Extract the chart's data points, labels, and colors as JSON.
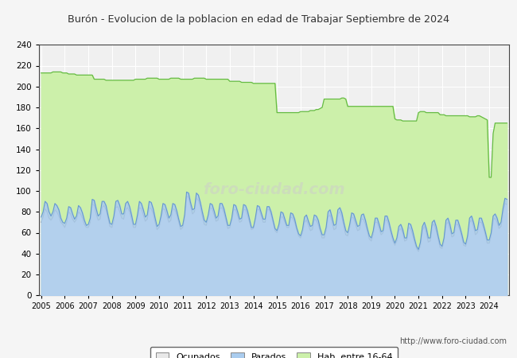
{
  "title": "Burón - Evolucion de la poblacion en edad de Trabajar Septiembre de 2024",
  "title_color": "#333333",
  "ylim": [
    0,
    240
  ],
  "yticks": [
    0,
    20,
    40,
    60,
    80,
    100,
    120,
    140,
    160,
    180,
    200,
    220,
    240
  ],
  "xlim_start": 2004.9,
  "xlim_end": 2024.85,
  "xtick_labels": [
    "2005",
    "2006",
    "2007",
    "2008",
    "2009",
    "2010",
    "2011",
    "2012",
    "2013",
    "2014",
    "2015",
    "2016",
    "2017",
    "2018",
    "2019",
    "2020",
    "2021",
    "2022",
    "2023",
    "2024"
  ],
  "url": "http://www.foro-ciudad.com",
  "legend_labels": [
    "Ocupados",
    "Parados",
    "Hab. entre 16-64"
  ],
  "hab_color": "#ccf0aa",
  "hab_edge": "#66bb44",
  "ocupados_fill": "#e8e8e8",
  "ocupados_edge": "#888888",
  "parados_fill": "#aaccee",
  "parados_edge": "#6699cc",
  "background_plot": "#f0f0f0",
  "fig_bg": "#f5f5f5",
  "grid_color": "white",
  "hab_steps_x": [
    2005.0,
    2005.083,
    2005.167,
    2005.25,
    2005.333,
    2005.417,
    2005.5,
    2005.583,
    2005.667,
    2005.75,
    2005.833,
    2005.917,
    2006.0,
    2006.083,
    2006.167,
    2006.25,
    2006.333,
    2006.417,
    2006.5,
    2006.583,
    2006.667,
    2006.75,
    2006.833,
    2006.917,
    2007.0,
    2007.083,
    2007.167,
    2007.25,
    2007.333,
    2007.417,
    2007.5,
    2007.583,
    2007.667,
    2007.75,
    2007.833,
    2007.917,
    2008.0,
    2008.083,
    2008.167,
    2008.25,
    2008.333,
    2008.417,
    2008.5,
    2008.583,
    2008.667,
    2008.75,
    2008.833,
    2008.917,
    2009.0,
    2009.083,
    2009.167,
    2009.25,
    2009.333,
    2009.417,
    2009.5,
    2009.583,
    2009.667,
    2009.75,
    2009.833,
    2009.917,
    2010.0,
    2010.083,
    2010.167,
    2010.25,
    2010.333,
    2010.417,
    2010.5,
    2010.583,
    2010.667,
    2010.75,
    2010.833,
    2010.917,
    2011.0,
    2011.083,
    2011.167,
    2011.25,
    2011.333,
    2011.417,
    2011.5,
    2011.583,
    2011.667,
    2011.75,
    2011.833,
    2011.917,
    2012.0,
    2012.083,
    2012.167,
    2012.25,
    2012.333,
    2012.417,
    2012.5,
    2012.583,
    2012.667,
    2012.75,
    2012.833,
    2012.917,
    2013.0,
    2013.083,
    2013.167,
    2013.25,
    2013.333,
    2013.417,
    2013.5,
    2013.583,
    2013.667,
    2013.75,
    2013.833,
    2013.917,
    2014.0,
    2014.083,
    2014.167,
    2014.25,
    2014.333,
    2014.417,
    2014.5,
    2014.583,
    2014.667,
    2014.75,
    2014.833,
    2014.917,
    2015.0,
    2015.083,
    2015.167,
    2015.25,
    2015.333,
    2015.417,
    2015.5,
    2015.583,
    2015.667,
    2015.75,
    2015.833,
    2015.917,
    2016.0,
    2016.083,
    2016.167,
    2016.25,
    2016.333,
    2016.417,
    2016.5,
    2016.583,
    2016.667,
    2016.75,
    2016.833,
    2016.917,
    2017.0,
    2017.083,
    2017.167,
    2017.25,
    2017.333,
    2017.417,
    2017.5,
    2017.583,
    2017.667,
    2017.75,
    2017.833,
    2017.917,
    2018.0,
    2018.083,
    2018.167,
    2018.25,
    2018.333,
    2018.417,
    2018.5,
    2018.583,
    2018.667,
    2018.75,
    2018.833,
    2018.917,
    2019.0,
    2019.083,
    2019.167,
    2019.25,
    2019.333,
    2019.417,
    2019.5,
    2019.583,
    2019.667,
    2019.75,
    2019.833,
    2019.917,
    2020.0,
    2020.083,
    2020.167,
    2020.25,
    2020.333,
    2020.417,
    2020.5,
    2020.583,
    2020.667,
    2020.75,
    2020.833,
    2020.917,
    2021.0,
    2021.083,
    2021.167,
    2021.25,
    2021.333,
    2021.417,
    2021.5,
    2021.583,
    2021.667,
    2021.75,
    2021.833,
    2021.917,
    2022.0,
    2022.083,
    2022.167,
    2022.25,
    2022.333,
    2022.417,
    2022.5,
    2022.583,
    2022.667,
    2022.75,
    2022.833,
    2022.917,
    2023.0,
    2023.083,
    2023.167,
    2023.25,
    2023.333,
    2023.417,
    2023.5,
    2023.583,
    2023.667,
    2023.75,
    2023.833,
    2023.917,
    2024.0,
    2024.083,
    2024.167,
    2024.25,
    2024.333,
    2024.417,
    2024.5,
    2024.583,
    2024.667,
    2024.75
  ],
  "hab_steps_y": [
    213,
    213,
    213,
    213,
    213,
    213,
    214,
    214,
    214,
    214,
    214,
    213,
    213,
    213,
    212,
    212,
    212,
    212,
    211,
    211,
    211,
    211,
    211,
    211,
    211,
    211,
    211,
    207,
    207,
    207,
    207,
    207,
    207,
    206,
    206,
    206,
    206,
    206,
    206,
    206,
    206,
    206,
    206,
    206,
    206,
    206,
    206,
    206,
    207,
    207,
    207,
    207,
    207,
    207,
    208,
    208,
    208,
    208,
    208,
    208,
    207,
    207,
    207,
    207,
    207,
    207,
    208,
    208,
    208,
    208,
    208,
    207,
    207,
    207,
    207,
    207,
    207,
    207,
    208,
    208,
    208,
    208,
    208,
    208,
    207,
    207,
    207,
    207,
    207,
    207,
    207,
    207,
    207,
    207,
    207,
    207,
    205,
    205,
    205,
    205,
    205,
    205,
    204,
    204,
    204,
    204,
    204,
    204,
    203,
    203,
    203,
    203,
    203,
    203,
    203,
    203,
    203,
    203,
    203,
    203,
    175,
    175,
    175,
    175,
    175,
    175,
    175,
    175,
    175,
    175,
    175,
    175,
    176,
    176,
    176,
    176,
    176,
    177,
    177,
    177,
    178,
    178,
    179,
    180,
    188,
    188,
    188,
    188,
    188,
    188,
    188,
    188,
    188,
    189,
    189,
    188,
    181,
    181,
    181,
    181,
    181,
    181,
    181,
    181,
    181,
    181,
    181,
    181,
    181,
    181,
    181,
    181,
    181,
    181,
    181,
    181,
    181,
    181,
    181,
    181,
    169,
    168,
    168,
    168,
    167,
    167,
    167,
    167,
    167,
    167,
    167,
    167,
    175,
    176,
    176,
    176,
    175,
    175,
    175,
    175,
    175,
    175,
    175,
    173,
    173,
    173,
    172,
    172,
    172,
    172,
    172,
    172,
    172,
    172,
    172,
    172,
    172,
    172,
    171,
    171,
    171,
    171,
    172,
    172,
    171,
    170,
    169,
    168,
    113,
    113,
    155,
    165,
    165,
    165,
    165,
    165,
    165,
    165
  ],
  "ocu_x": [
    2005.0,
    2005.083,
    2005.167,
    2005.25,
    2005.333,
    2005.417,
    2005.5,
    2005.583,
    2005.667,
    2005.75,
    2005.833,
    2005.917,
    2006.0,
    2006.083,
    2006.167,
    2006.25,
    2006.333,
    2006.417,
    2006.5,
    2006.583,
    2006.667,
    2006.75,
    2006.833,
    2006.917,
    2007.0,
    2007.083,
    2007.167,
    2007.25,
    2007.333,
    2007.417,
    2007.5,
    2007.583,
    2007.667,
    2007.75,
    2007.833,
    2007.917,
    2008.0,
    2008.083,
    2008.167,
    2008.25,
    2008.333,
    2008.417,
    2008.5,
    2008.583,
    2008.667,
    2008.75,
    2008.833,
    2008.917,
    2009.0,
    2009.083,
    2009.167,
    2009.25,
    2009.333,
    2009.417,
    2009.5,
    2009.583,
    2009.667,
    2009.75,
    2009.833,
    2009.917,
    2010.0,
    2010.083,
    2010.167,
    2010.25,
    2010.333,
    2010.417,
    2010.5,
    2010.583,
    2010.667,
    2010.75,
    2010.833,
    2010.917,
    2011.0,
    2011.083,
    2011.167,
    2011.25,
    2011.333,
    2011.417,
    2011.5,
    2011.583,
    2011.667,
    2011.75,
    2011.833,
    2011.917,
    2012.0,
    2012.083,
    2012.167,
    2012.25,
    2012.333,
    2012.417,
    2012.5,
    2012.583,
    2012.667,
    2012.75,
    2012.833,
    2012.917,
    2013.0,
    2013.083,
    2013.167,
    2013.25,
    2013.333,
    2013.417,
    2013.5,
    2013.583,
    2013.667,
    2013.75,
    2013.833,
    2013.917,
    2014.0,
    2014.083,
    2014.167,
    2014.25,
    2014.333,
    2014.417,
    2014.5,
    2014.583,
    2014.667,
    2014.75,
    2014.833,
    2014.917,
    2015.0,
    2015.083,
    2015.167,
    2015.25,
    2015.333,
    2015.417,
    2015.5,
    2015.583,
    2015.667,
    2015.75,
    2015.833,
    2015.917,
    2016.0,
    2016.083,
    2016.167,
    2016.25,
    2016.333,
    2016.417,
    2016.5,
    2016.583,
    2016.667,
    2016.75,
    2016.833,
    2016.917,
    2017.0,
    2017.083,
    2017.167,
    2017.25,
    2017.333,
    2017.417,
    2017.5,
    2017.583,
    2017.667,
    2017.75,
    2017.833,
    2017.917,
    2018.0,
    2018.083,
    2018.167,
    2018.25,
    2018.333,
    2018.417,
    2018.5,
    2018.583,
    2018.667,
    2018.75,
    2018.833,
    2018.917,
    2019.0,
    2019.083,
    2019.167,
    2019.25,
    2019.333,
    2019.417,
    2019.5,
    2019.583,
    2019.667,
    2019.75,
    2019.833,
    2019.917,
    2020.0,
    2020.083,
    2020.167,
    2020.25,
    2020.333,
    2020.417,
    2020.5,
    2020.583,
    2020.667,
    2020.75,
    2020.833,
    2020.917,
    2021.0,
    2021.083,
    2021.167,
    2021.25,
    2021.333,
    2021.417,
    2021.5,
    2021.583,
    2021.667,
    2021.75,
    2021.833,
    2021.917,
    2022.0,
    2022.083,
    2022.167,
    2022.25,
    2022.333,
    2022.417,
    2022.5,
    2022.583,
    2022.667,
    2022.75,
    2022.833,
    2022.917,
    2023.0,
    2023.083,
    2023.167,
    2023.25,
    2023.333,
    2023.417,
    2023.5,
    2023.583,
    2023.667,
    2023.75,
    2023.833,
    2023.917,
    2024.0,
    2024.083,
    2024.167,
    2024.25,
    2024.333,
    2024.417,
    2024.5,
    2024.583,
    2024.667,
    2024.75
  ],
  "ocu_y": [
    70,
    75,
    83,
    80,
    74,
    72,
    75,
    82,
    80,
    76,
    70,
    68,
    65,
    70,
    80,
    78,
    73,
    70,
    73,
    80,
    78,
    74,
    68,
    65,
    65,
    70,
    88,
    86,
    78,
    72,
    73,
    84,
    86,
    82,
    74,
    66,
    65,
    72,
    84,
    85,
    80,
    74,
    73,
    82,
    84,
    80,
    73,
    65,
    65,
    73,
    84,
    83,
    77,
    71,
    73,
    84,
    83,
    78,
    70,
    63,
    65,
    73,
    83,
    82,
    76,
    70,
    72,
    83,
    82,
    77,
    70,
    63,
    65,
    73,
    95,
    94,
    86,
    78,
    80,
    93,
    91,
    85,
    76,
    68,
    67,
    74,
    84,
    83,
    77,
    71,
    72,
    83,
    84,
    79,
    72,
    64,
    65,
    72,
    82,
    82,
    76,
    70,
    71,
    82,
    82,
    77,
    70,
    63,
    64,
    72,
    82,
    82,
    76,
    70,
    70,
    82,
    82,
    77,
    70,
    62,
    60,
    65,
    75,
    75,
    70,
    65,
    65,
    75,
    74,
    70,
    63,
    57,
    55,
    60,
    70,
    72,
    67,
    62,
    63,
    73,
    72,
    68,
    61,
    55,
    55,
    62,
    75,
    77,
    70,
    63,
    64,
    78,
    80,
    75,
    66,
    58,
    57,
    65,
    75,
    74,
    68,
    62,
    63,
    73,
    73,
    68,
    61,
    54,
    52,
    59,
    70,
    70,
    64,
    58,
    60,
    72,
    72,
    67,
    59,
    52,
    48,
    52,
    62,
    64,
    60,
    52,
    53,
    65,
    64,
    58,
    51,
    45,
    42,
    48,
    62,
    66,
    60,
    51,
    52,
    67,
    68,
    62,
    54,
    46,
    45,
    52,
    68,
    70,
    64,
    56,
    57,
    68,
    68,
    63,
    56,
    48,
    47,
    54,
    70,
    72,
    66,
    58,
    60,
    70,
    70,
    65,
    58,
    50,
    50,
    57,
    72,
    74,
    70,
    64,
    66,
    78,
    88,
    87
  ],
  "par_x": [
    2005.0,
    2005.083,
    2005.167,
    2005.25,
    2005.333,
    2005.417,
    2005.5,
    2005.583,
    2005.667,
    2005.75,
    2005.833,
    2005.917,
    2006.0,
    2006.083,
    2006.167,
    2006.25,
    2006.333,
    2006.417,
    2006.5,
    2006.583,
    2006.667,
    2006.75,
    2006.833,
    2006.917,
    2007.0,
    2007.083,
    2007.167,
    2007.25,
    2007.333,
    2007.417,
    2007.5,
    2007.583,
    2007.667,
    2007.75,
    2007.833,
    2007.917,
    2008.0,
    2008.083,
    2008.167,
    2008.25,
    2008.333,
    2008.417,
    2008.5,
    2008.583,
    2008.667,
    2008.75,
    2008.833,
    2008.917,
    2009.0,
    2009.083,
    2009.167,
    2009.25,
    2009.333,
    2009.417,
    2009.5,
    2009.583,
    2009.667,
    2009.75,
    2009.833,
    2009.917,
    2010.0,
    2010.083,
    2010.167,
    2010.25,
    2010.333,
    2010.417,
    2010.5,
    2010.583,
    2010.667,
    2010.75,
    2010.833,
    2010.917,
    2011.0,
    2011.083,
    2011.167,
    2011.25,
    2011.333,
    2011.417,
    2011.5,
    2011.583,
    2011.667,
    2011.75,
    2011.833,
    2011.917,
    2012.0,
    2012.083,
    2012.167,
    2012.25,
    2012.333,
    2012.417,
    2012.5,
    2012.583,
    2012.667,
    2012.75,
    2012.833,
    2012.917,
    2013.0,
    2013.083,
    2013.167,
    2013.25,
    2013.333,
    2013.417,
    2013.5,
    2013.583,
    2013.667,
    2013.75,
    2013.833,
    2013.917,
    2014.0,
    2014.083,
    2014.167,
    2014.25,
    2014.333,
    2014.417,
    2014.5,
    2014.583,
    2014.667,
    2014.75,
    2014.833,
    2014.917,
    2015.0,
    2015.083,
    2015.167,
    2015.25,
    2015.333,
    2015.417,
    2015.5,
    2015.583,
    2015.667,
    2015.75,
    2015.833,
    2015.917,
    2016.0,
    2016.083,
    2016.167,
    2016.25,
    2016.333,
    2016.417,
    2016.5,
    2016.583,
    2016.667,
    2016.75,
    2016.833,
    2016.917,
    2017.0,
    2017.083,
    2017.167,
    2017.25,
    2017.333,
    2017.417,
    2017.5,
    2017.583,
    2017.667,
    2017.75,
    2017.833,
    2017.917,
    2018.0,
    2018.083,
    2018.167,
    2018.25,
    2018.333,
    2018.417,
    2018.5,
    2018.583,
    2018.667,
    2018.75,
    2018.833,
    2018.917,
    2019.0,
    2019.083,
    2019.167,
    2019.25,
    2019.333,
    2019.417,
    2019.5,
    2019.583,
    2019.667,
    2019.75,
    2019.833,
    2019.917,
    2020.0,
    2020.083,
    2020.167,
    2020.25,
    2020.333,
    2020.417,
    2020.5,
    2020.583,
    2020.667,
    2020.75,
    2020.833,
    2020.917,
    2021.0,
    2021.083,
    2021.167,
    2021.25,
    2021.333,
    2021.417,
    2021.5,
    2021.583,
    2021.667,
    2021.75,
    2021.833,
    2021.917,
    2022.0,
    2022.083,
    2022.167,
    2022.25,
    2022.333,
    2022.417,
    2022.5,
    2022.583,
    2022.667,
    2022.75,
    2022.833,
    2022.917,
    2023.0,
    2023.083,
    2023.167,
    2023.25,
    2023.333,
    2023.417,
    2023.5,
    2023.583,
    2023.667,
    2023.75,
    2023.833,
    2023.917,
    2024.0,
    2024.083,
    2024.167,
    2024.25,
    2024.333,
    2024.417,
    2024.5,
    2024.583,
    2024.667,
    2024.75
  ],
  "par_y": [
    75,
    80,
    90,
    88,
    80,
    76,
    80,
    88,
    86,
    82,
    74,
    70,
    69,
    74,
    85,
    84,
    78,
    73,
    76,
    86,
    84,
    79,
    72,
    67,
    68,
    74,
    92,
    91,
    83,
    76,
    78,
    90,
    90,
    86,
    77,
    69,
    68,
    76,
    90,
    91,
    86,
    78,
    78,
    88,
    90,
    85,
    77,
    68,
    68,
    77,
    90,
    88,
    82,
    75,
    77,
    90,
    89,
    83,
    74,
    66,
    68,
    76,
    88,
    87,
    81,
    74,
    77,
    88,
    87,
    81,
    73,
    66,
    67,
    77,
    99,
    98,
    89,
    82,
    83,
    98,
    96,
    89,
    80,
    72,
    70,
    77,
    88,
    87,
    81,
    74,
    76,
    88,
    88,
    83,
    75,
    67,
    67,
    74,
    87,
    86,
    80,
    73,
    74,
    87,
    86,
    81,
    73,
    65,
    65,
    74,
    86,
    85,
    79,
    73,
    73,
    85,
    85,
    80,
    72,
    64,
    62,
    68,
    80,
    79,
    73,
    67,
    67,
    79,
    78,
    73,
    65,
    59,
    57,
    63,
    75,
    77,
    71,
    66,
    67,
    77,
    76,
    72,
    64,
    58,
    58,
    65,
    80,
    82,
    75,
    67,
    68,
    82,
    84,
    79,
    70,
    62,
    60,
    68,
    79,
    78,
    72,
    66,
    67,
    77,
    78,
    72,
    64,
    57,
    55,
    62,
    74,
    74,
    68,
    61,
    62,
    76,
    76,
    70,
    62,
    55,
    50,
    55,
    66,
    68,
    63,
    55,
    55,
    69,
    68,
    62,
    54,
    47,
    44,
    51,
    66,
    70,
    64,
    55,
    55,
    70,
    72,
    66,
    57,
    49,
    47,
    55,
    72,
    74,
    68,
    59,
    60,
    72,
    72,
    66,
    59,
    51,
    49,
    57,
    74,
    76,
    70,
    62,
    63,
    74,
    74,
    68,
    61,
    53,
    53,
    60,
    76,
    78,
    74,
    67,
    70,
    83,
    93,
    92
  ]
}
